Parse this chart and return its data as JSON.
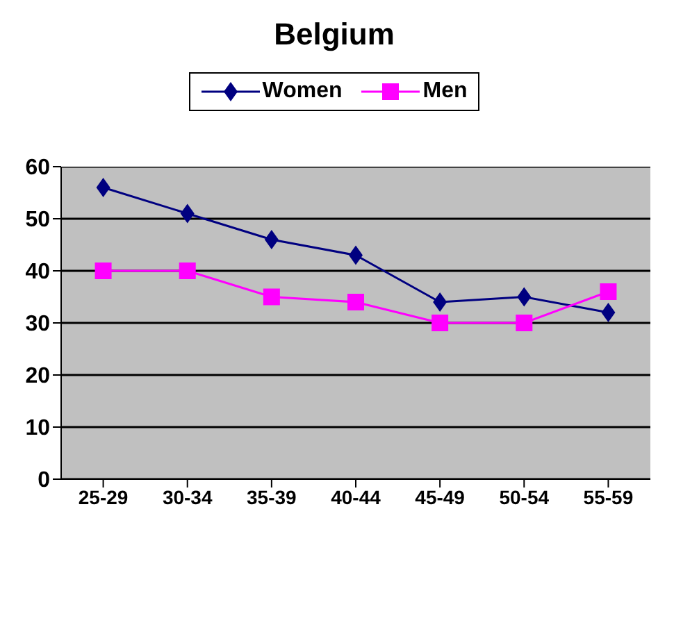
{
  "chart_data": {
    "type": "line",
    "title": "Belgium",
    "categories": [
      "25-29",
      "30-34",
      "35-39",
      "40-44",
      "45-49",
      "50-54",
      "55-59"
    ],
    "series": [
      {
        "name": "Women",
        "color": "#000080",
        "marker": "diamond",
        "values": [
          56,
          51,
          46,
          43,
          34,
          35,
          32
        ]
      },
      {
        "name": "Men",
        "color": "#ff00ff",
        "marker": "square",
        "values": [
          40,
          40,
          35,
          34,
          30,
          30,
          36
        ]
      }
    ],
    "ylim": [
      0,
      60
    ],
    "yticks": [
      0,
      10,
      20,
      30,
      40,
      50,
      60
    ],
    "grid": "y",
    "legend": "top"
  }
}
